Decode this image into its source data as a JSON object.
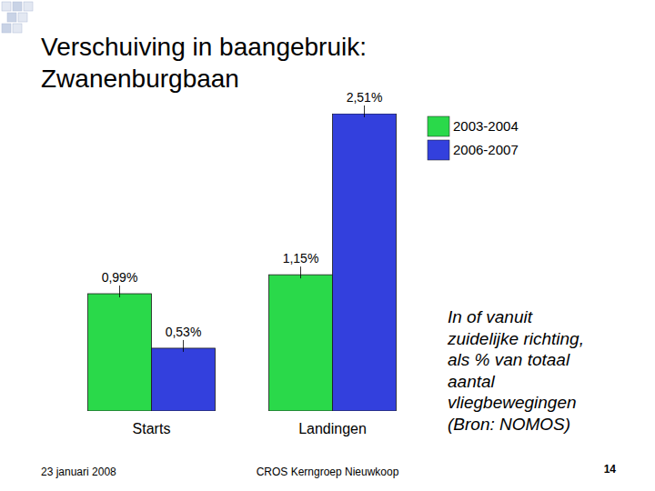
{
  "chart_data": {
    "type": "bar",
    "title": "Verschuiving in baangebruik: Zwanenburgbaan",
    "categories": [
      "Starts",
      "Landingen"
    ],
    "series": [
      {
        "name": "2003-2004",
        "color": "#2ad94a",
        "values": [
          0.99,
          1.15
        ],
        "value_labels": [
          "0,99%",
          "1,15%"
        ]
      },
      {
        "name": "2006-2007",
        "color": "#3340dd",
        "values": [
          0.53,
          2.51
        ],
        "value_labels": [
          "0,53%",
          "2,51%"
        ]
      }
    ],
    "ylim": [
      0,
      2.51
    ],
    "data_labels": true,
    "tick_labels": "x",
    "grid": false,
    "legend": "top-right",
    "annotation": [
      "In of vanuit",
      "zuidelijke richting,",
      "als % van totaal",
      "aantal",
      "vliegbewegingen",
      "(Bron: NOMOS)"
    ]
  },
  "footer": {
    "date": "23 januari 2008",
    "center": "CROS Kerngroep Nieuwkoop",
    "page": "14"
  }
}
